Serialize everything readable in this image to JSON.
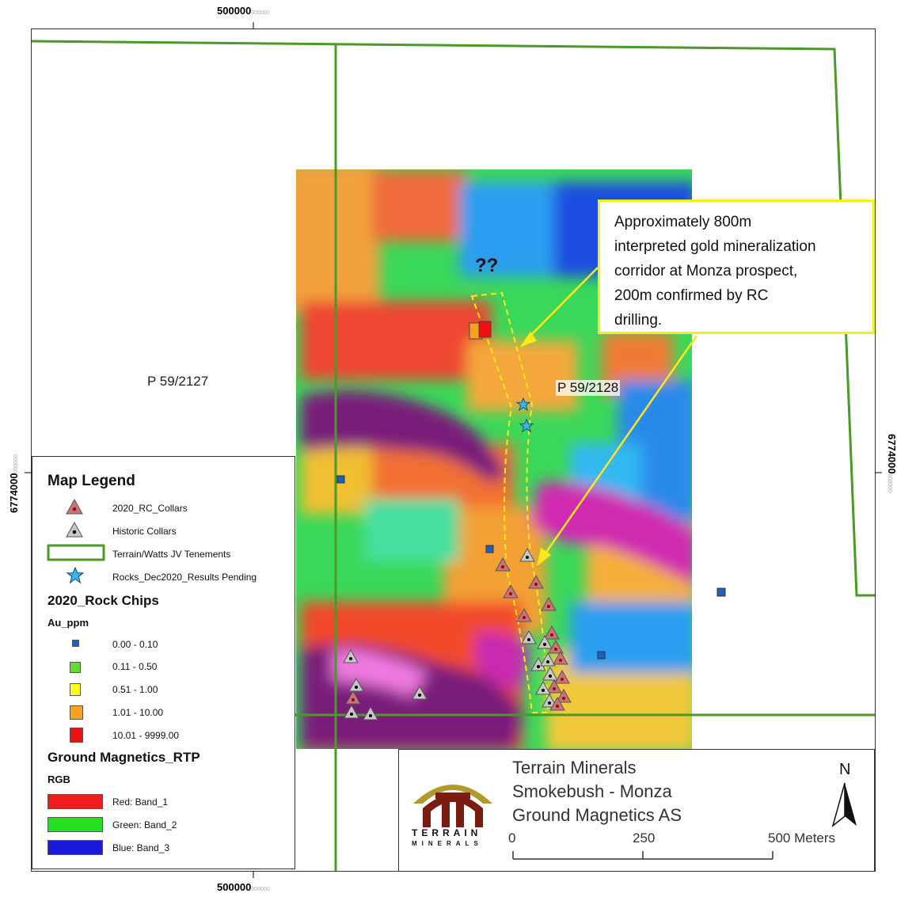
{
  "coordinates": {
    "easting_label": "500000",
    "easting_suffix": "000000",
    "northing_label": "6774000",
    "northing_suffix": "000000"
  },
  "tenements": {
    "west": "P 59/2127",
    "east": "P 59/2128"
  },
  "question_marks": "??",
  "callout": {
    "line1": "Approximately 800m",
    "line2": "interpreted gold mineralization",
    "line3": "corridor at Monza prospect,",
    "line4": "200m confirmed by RC",
    "line5": "drilling."
  },
  "legend": {
    "title": "Map Legend",
    "items": [
      {
        "label": "2020_RC_Collars",
        "icon": "red-dot-triangle-icon"
      },
      {
        "label": "Historic Collars",
        "icon": "black-dot-triangle-icon"
      },
      {
        "label": "Terrain/Watts JV Tenements",
        "icon": "green-outline-box-icon"
      },
      {
        "label": "Rocks_Dec2020_Results Pending",
        "icon": "blue-star-icon"
      }
    ],
    "rock_chips_title": "2020_Rock Chips",
    "rock_chips_field": "Au_ppm",
    "rock_chips": [
      {
        "label": "0.00 - 0.10",
        "color": "#1f5fbf"
      },
      {
        "label": "0.11 - 0.50",
        "color": "#5ee02a"
      },
      {
        "label": "0.51 - 1.00",
        "color": "#ffff1e"
      },
      {
        "label": "1.01 - 10.00",
        "color": "#f8a31b"
      },
      {
        "label": "10.01 - 9999.00",
        "color": "#ee1111"
      }
    ],
    "magnetics_title": "Ground Magnetics_RTP",
    "magnetics_field": "RGB",
    "bands": [
      {
        "label": "Red:   Band_1",
        "color": "#ee1c1c"
      },
      {
        "label": "Green:  Band_2",
        "color": "#22e022"
      },
      {
        "label": "Blue:   Band_3",
        "color": "#1a1ad8"
      }
    ]
  },
  "title_block": {
    "line1": "Terrain Minerals",
    "line2": "Smokebush - Monza",
    "line3": "Ground Magnetics AS",
    "logo_text_top": "TERRAIN",
    "logo_text_bottom": "MINERALS",
    "north_label": "N",
    "scale": {
      "zero": "0",
      "mid": "250",
      "end": "500 Meters"
    }
  },
  "colors": {
    "tenement_green": "#4a9a28",
    "callout_yellow": "#f3ef1d",
    "corridor_yellow": "#ffe81a",
    "logo_gold": "#b09a2a",
    "logo_red": "#7a1c10"
  }
}
